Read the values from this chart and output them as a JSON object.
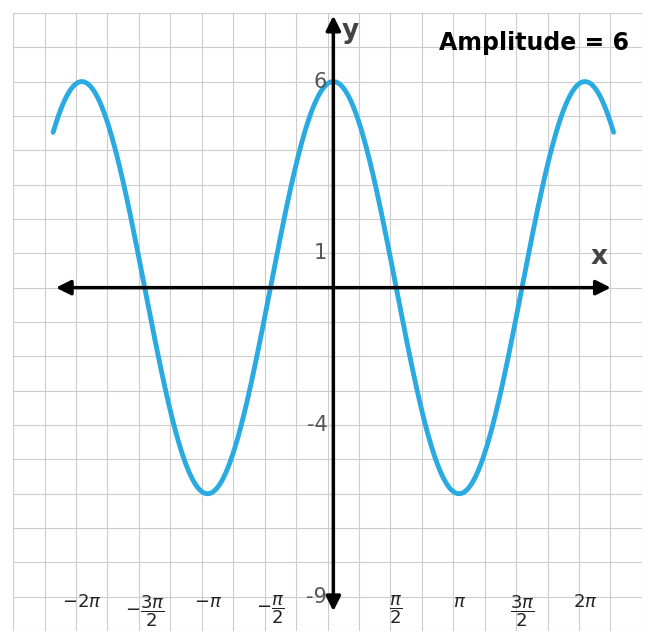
{
  "title": "Amplitude = 6",
  "curve_color": "#29ABE2",
  "curve_linewidth": 3.5,
  "amplitude": 6,
  "x_min": -7.0,
  "x_max": 7.0,
  "y_min": -9.5,
  "y_max": 8.0,
  "grid_color": "#CCCCCC",
  "axis_color": "#000000",
  "background_color": "#FFFFFF",
  "font_size_ticks": 15,
  "font_size_title": 17,
  "font_size_axis_label": 19,
  "tick_label_color": "#555555"
}
